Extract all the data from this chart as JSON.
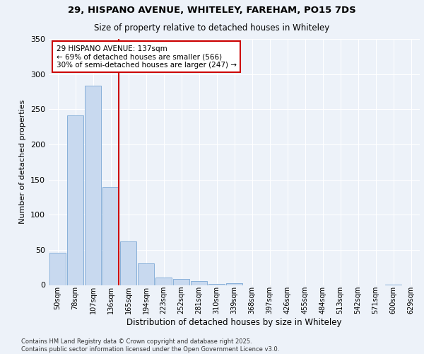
{
  "title_line1": "29, HISPANO AVENUE, WHITELEY, FAREHAM, PO15 7DS",
  "title_line2": "Size of property relative to detached houses in Whiteley",
  "xlabel": "Distribution of detached houses by size in Whiteley",
  "ylabel": "Number of detached properties",
  "categories": [
    "50sqm",
    "78sqm",
    "107sqm",
    "136sqm",
    "165sqm",
    "194sqm",
    "223sqm",
    "252sqm",
    "281sqm",
    "310sqm",
    "339sqm",
    "368sqm",
    "397sqm",
    "426sqm",
    "455sqm",
    "484sqm",
    "513sqm",
    "542sqm",
    "571sqm",
    "600sqm",
    "629sqm"
  ],
  "values": [
    46,
    241,
    284,
    140,
    62,
    31,
    11,
    9,
    6,
    2,
    3,
    0,
    0,
    0,
    0,
    0,
    0,
    0,
    0,
    1,
    0
  ],
  "bar_color": "#c8d9ef",
  "bar_edge_color": "#7ba7d4",
  "highlight_bar_index": 3,
  "highlight_line_color": "#cc0000",
  "annotation_text": "29 HISPANO AVENUE: 137sqm\n← 69% of detached houses are smaller (566)\n30% of semi-detached houses are larger (247) →",
  "annotation_box_color": "#ffffff",
  "annotation_box_edge": "#cc0000",
  "ylim": [
    0,
    350
  ],
  "yticks": [
    0,
    50,
    100,
    150,
    200,
    250,
    300,
    350
  ],
  "background_color": "#edf2f9",
  "grid_color": "#ffffff",
  "footer_line1": "Contains HM Land Registry data © Crown copyright and database right 2025.",
  "footer_line2": "Contains public sector information licensed under the Open Government Licence v3.0."
}
